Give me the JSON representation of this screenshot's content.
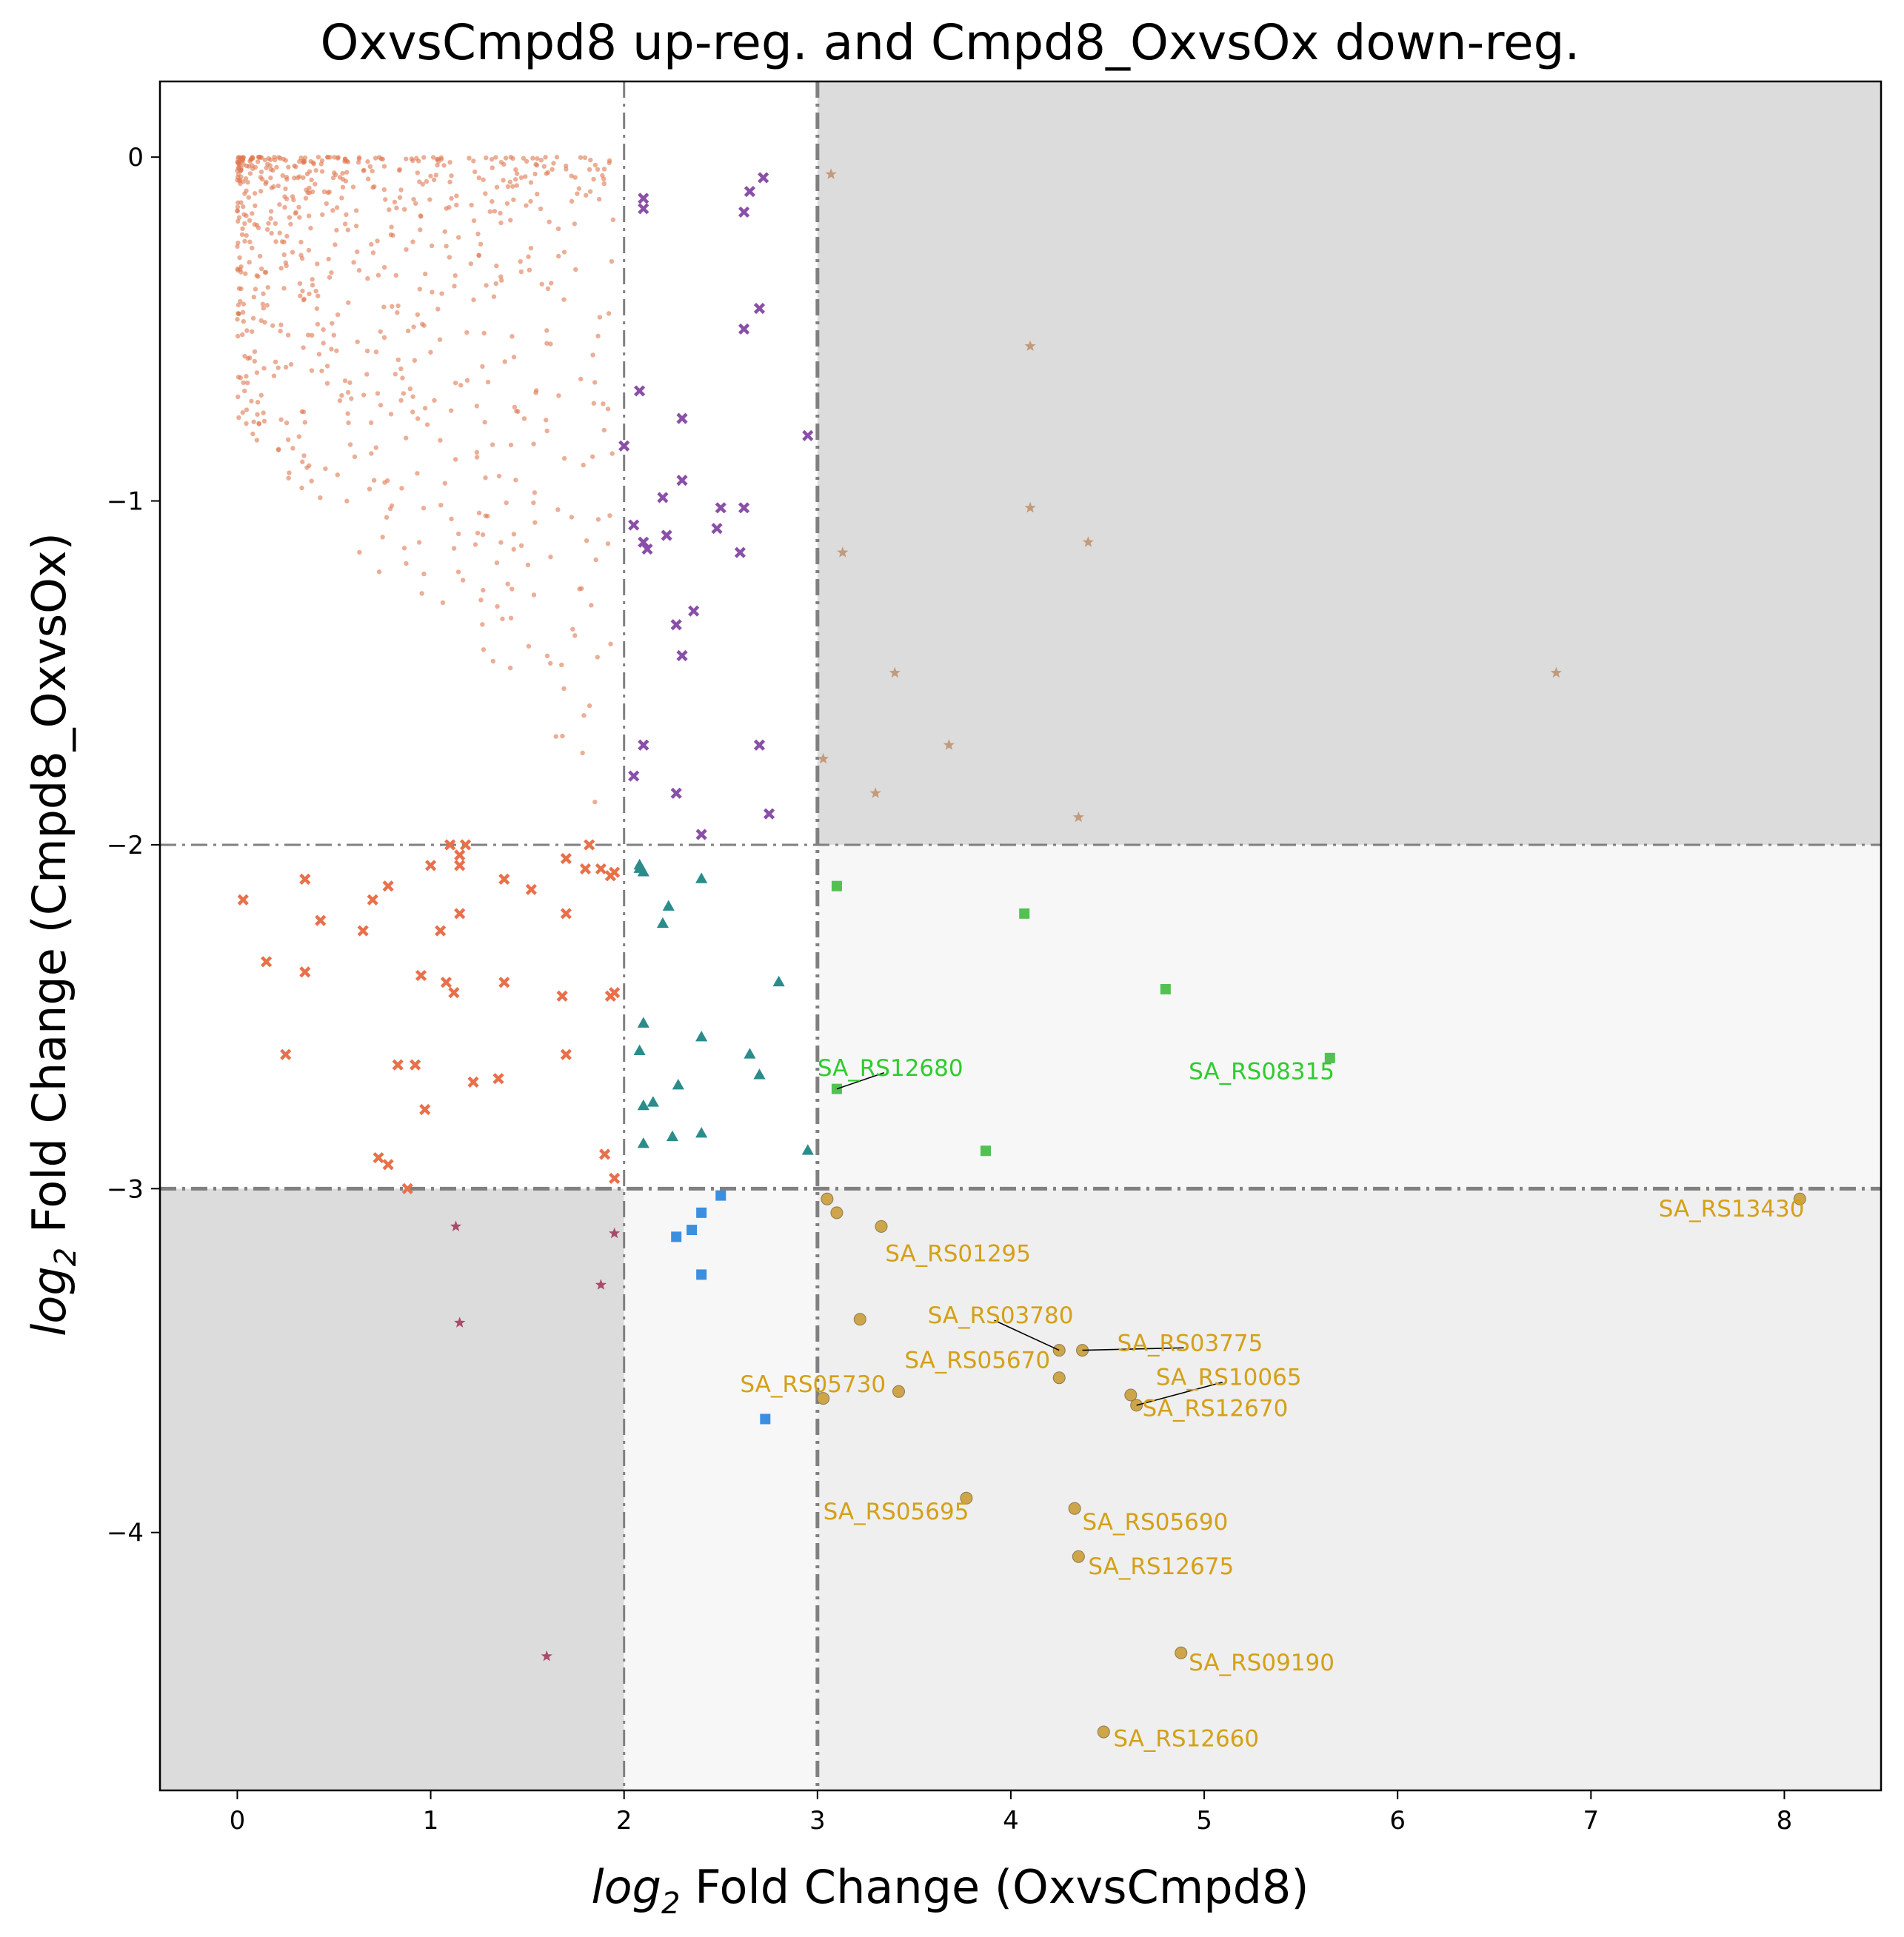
{
  "chart_data": {
    "type": "scatter",
    "title": "OxvsCmpd8 up-reg. and Cmpd8_OxvsOx down-reg.",
    "xlabel_prefix": "log",
    "xlabel_sub": "2",
    "xlabel_rest": " Fold Change (OxvsCmpd8)",
    "ylabel_prefix": "log",
    "ylabel_sub": "2",
    "ylabel_rest": " Fold Change (Cmpd8_OxvsOx)",
    "xlim": [
      -0.4,
      8.5
    ],
    "ylim": [
      -4.75,
      0.22
    ],
    "xticks": [
      0,
      1,
      2,
      3,
      4,
      5,
      6,
      7,
      8
    ],
    "yticks": [
      0,
      -1,
      -2,
      -3,
      -4
    ],
    "grid": false,
    "thresholds": {
      "x_minor": 2,
      "x_major": 3,
      "y_minor": -2,
      "y_major": -3
    },
    "series": [
      {
        "marker": "x",
        "color": "#8a4fa8",
        "points": [
          [
            2.1,
            -0.12
          ],
          [
            2.1,
            -0.15
          ],
          [
            2.65,
            -0.1
          ],
          [
            2.72,
            -0.06
          ],
          [
            2.62,
            -0.16
          ],
          [
            2.7,
            -0.44
          ],
          [
            2.62,
            -0.5
          ],
          [
            2.08,
            -0.68
          ],
          [
            2.3,
            -0.76
          ],
          [
            2.95,
            -0.81
          ],
          [
            2.0,
            -0.84
          ],
          [
            2.3,
            -0.94
          ],
          [
            2.2,
            -0.99
          ],
          [
            2.5,
            -1.02
          ],
          [
            2.62,
            -1.02
          ],
          [
            2.05,
            -1.07
          ],
          [
            2.22,
            -1.1
          ],
          [
            2.48,
            -1.08
          ],
          [
            2.1,
            -1.12
          ],
          [
            2.12,
            -1.14
          ],
          [
            2.6,
            -1.15
          ],
          [
            2.27,
            -1.36
          ],
          [
            2.36,
            -1.32
          ],
          [
            2.3,
            -1.45
          ],
          [
            2.1,
            -1.71
          ],
          [
            2.7,
            -1.71
          ],
          [
            2.05,
            -1.8
          ],
          [
            2.27,
            -1.85
          ],
          [
            2.75,
            -1.91
          ],
          [
            2.4,
            -1.97
          ]
        ]
      },
      {
        "marker": "x",
        "color": "#e8704a",
        "points": [
          [
            0.03,
            -2.16
          ],
          [
            0.15,
            -2.34
          ],
          [
            0.25,
            -2.61
          ],
          [
            0.35,
            -2.1
          ],
          [
            0.35,
            -2.37
          ],
          [
            0.43,
            -2.22
          ],
          [
            0.65,
            -2.25
          ],
          [
            0.7,
            -2.16
          ],
          [
            0.73,
            -2.91
          ],
          [
            0.78,
            -2.12
          ],
          [
            0.78,
            -2.93
          ],
          [
            0.83,
            -2.64
          ],
          [
            0.88,
            -3.0
          ],
          [
            0.92,
            -2.64
          ],
          [
            0.95,
            -2.38
          ],
          [
            0.97,
            -2.77
          ],
          [
            1.0,
            -2.06
          ],
          [
            1.05,
            -2.25
          ],
          [
            1.08,
            -2.4
          ],
          [
            1.1,
            -2.0
          ],
          [
            1.12,
            -2.43
          ],
          [
            1.15,
            -2.03
          ],
          [
            1.15,
            -2.06
          ],
          [
            1.15,
            -2.2
          ],
          [
            1.18,
            -2.0
          ],
          [
            1.22,
            -2.69
          ],
          [
            1.35,
            -2.68
          ],
          [
            1.38,
            -2.1
          ],
          [
            1.38,
            -2.4
          ],
          [
            1.52,
            -2.13
          ],
          [
            1.68,
            -2.44
          ],
          [
            1.7,
            -2.04
          ],
          [
            1.7,
            -2.2
          ],
          [
            1.7,
            -2.61
          ],
          [
            1.8,
            -2.07
          ],
          [
            1.82,
            -2.0
          ],
          [
            1.88,
            -2.07
          ],
          [
            1.9,
            -2.9
          ],
          [
            1.93,
            -2.44
          ],
          [
            1.95,
            -2.43
          ],
          [
            1.95,
            -2.97
          ],
          [
            1.95,
            -2.08
          ],
          [
            1.93,
            -2.09
          ]
        ]
      },
      {
        "marker": "triangle",
        "color": "#2b8c8c",
        "points": [
          [
            2.08,
            -2.06
          ],
          [
            2.08,
            -2.07
          ],
          [
            2.1,
            -2.08
          ],
          [
            2.2,
            -2.23
          ],
          [
            2.23,
            -2.18
          ],
          [
            2.4,
            -2.1
          ],
          [
            2.8,
            -2.4
          ],
          [
            2.1,
            -2.52
          ],
          [
            2.4,
            -2.56
          ],
          [
            2.08,
            -2.6
          ],
          [
            2.65,
            -2.61
          ],
          [
            2.7,
            -2.67
          ],
          [
            2.28,
            -2.7
          ],
          [
            2.1,
            -2.76
          ],
          [
            2.15,
            -2.75
          ],
          [
            2.25,
            -2.85
          ],
          [
            2.4,
            -2.84
          ],
          [
            2.1,
            -2.87
          ],
          [
            2.95,
            -2.89
          ]
        ]
      },
      {
        "marker": "square",
        "color": "#52c152",
        "points": [
          [
            3.1,
            -2.12
          ],
          [
            4.07,
            -2.2
          ],
          [
            4.8,
            -2.42
          ],
          [
            5.65,
            -2.62
          ],
          [
            3.1,
            -2.71
          ],
          [
            3.87,
            -2.89
          ]
        ]
      },
      {
        "marker": "square",
        "color": "#3b8fe0",
        "points": [
          [
            2.5,
            -3.02
          ],
          [
            2.4,
            -3.07
          ],
          [
            2.35,
            -3.12
          ],
          [
            2.27,
            -3.14
          ],
          [
            2.4,
            -3.25
          ],
          [
            2.73,
            -3.67
          ]
        ]
      },
      {
        "marker": "star",
        "color": "#c29a7c",
        "points": [
          [
            3.07,
            -0.05
          ],
          [
            4.1,
            -0.55
          ],
          [
            4.1,
            -1.02
          ],
          [
            3.13,
            -1.15
          ],
          [
            4.4,
            -1.12
          ],
          [
            3.4,
            -1.5
          ],
          [
            6.82,
            -1.5
          ],
          [
            3.68,
            -1.71
          ],
          [
            3.03,
            -1.75
          ],
          [
            3.3,
            -1.85
          ],
          [
            4.35,
            -1.92
          ]
        ]
      },
      {
        "marker": "star",
        "color": "#a84b6a",
        "points": [
          [
            1.13,
            -3.11
          ],
          [
            1.95,
            -3.13
          ],
          [
            1.88,
            -3.28
          ],
          [
            1.15,
            -3.39
          ],
          [
            1.6,
            -4.36
          ]
        ]
      },
      {
        "marker": "circle",
        "color": "#cfa54a",
        "points": [
          [
            3.05,
            -3.03
          ],
          [
            3.1,
            -3.07
          ],
          [
            3.33,
            -3.11
          ],
          [
            8.08,
            -3.03
          ],
          [
            3.22,
            -3.38
          ],
          [
            4.25,
            -3.47
          ],
          [
            4.37,
            -3.47
          ],
          [
            4.25,
            -3.55
          ],
          [
            4.62,
            -3.6
          ],
          [
            4.65,
            -3.63
          ],
          [
            3.03,
            -3.61
          ],
          [
            3.42,
            -3.59
          ],
          [
            3.77,
            -3.9
          ],
          [
            4.33,
            -3.93
          ],
          [
            4.35,
            -4.07
          ],
          [
            4.88,
            -4.35
          ],
          [
            4.48,
            -4.58
          ]
        ]
      }
    ],
    "annotations": [
      {
        "text": "SA_RS12680",
        "color": "#2ecc2e",
        "x": 3.0,
        "y": -2.65,
        "px": 3.1,
        "py": -2.71,
        "leader": true
      },
      {
        "text": "SA_RS08315",
        "color": "#2ecc2e",
        "x": 4.92,
        "y": -2.66,
        "px": 5.65,
        "py": -2.62,
        "leader": false
      },
      {
        "text": "SA_RS13430",
        "color": "#d4a017",
        "x": 7.35,
        "y": -3.06,
        "px": 8.08,
        "py": -3.03,
        "leader": false
      },
      {
        "text": "SA_RS01295",
        "color": "#d4a017",
        "x": 3.35,
        "y": -3.19,
        "px": 3.33,
        "py": -3.11,
        "leader": false
      },
      {
        "text": "SA_RS03780",
        "color": "#d4a017",
        "x": 3.57,
        "y": -3.37,
        "px": 4.25,
        "py": -3.47,
        "leader": true
      },
      {
        "text": "SA_RS03775",
        "color": "#d4a017",
        "x": 4.55,
        "y": -3.45,
        "px": 4.37,
        "py": -3.47,
        "leader": true
      },
      {
        "text": "SA_RS05670",
        "color": "#d4a017",
        "x": 3.45,
        "y": -3.5,
        "px": 4.25,
        "py": -3.55,
        "leader": false
      },
      {
        "text": "SA_RS10065",
        "color": "#d4a017",
        "x": 4.75,
        "y": -3.55,
        "px": 4.65,
        "py": -3.63,
        "leader": true
      },
      {
        "text": "SA_RS05730",
        "color": "#d4a017",
        "x": 2.6,
        "y": -3.57,
        "px": 3.03,
        "py": -3.61,
        "leader": false
      },
      {
        "text": "SA_RS12670",
        "color": "#d4a017",
        "x": 4.68,
        "y": -3.64,
        "px": 4.62,
        "py": -3.6,
        "leader": false
      },
      {
        "text": "SA_RS05695",
        "color": "#d4a017",
        "x": 3.03,
        "y": -3.94,
        "px": 3.77,
        "py": -3.9,
        "leader": false
      },
      {
        "text": "SA_RS05690",
        "color": "#d4a017",
        "x": 4.37,
        "y": -3.97,
        "px": 4.33,
        "py": -3.93,
        "leader": false
      },
      {
        "text": "SA_RS12675",
        "color": "#d4a017",
        "x": 4.4,
        "y": -4.1,
        "px": 4.35,
        "py": -4.07,
        "leader": false
      },
      {
        "text": "SA_RS09190",
        "color": "#d4a017",
        "x": 4.92,
        "y": -4.38,
        "px": 4.88,
        "py": -4.35,
        "leader": false
      },
      {
        "text": "SA_RS12660",
        "color": "#d4a017",
        "x": 4.53,
        "y": -4.6,
        "px": 4.48,
        "py": -4.58,
        "leader": false
      }
    ],
    "background_cloud": {
      "color": "#e07850",
      "x_range": [
        0,
        1.95
      ],
      "y_range": [
        -1.95,
        0
      ],
      "count": 720
    }
  }
}
